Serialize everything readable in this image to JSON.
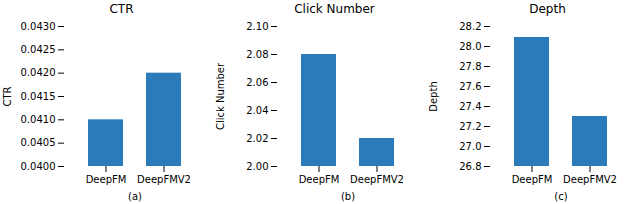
{
  "chart_data": [
    {
      "type": "bar",
      "title": "CTR",
      "xlabel": "(a)",
      "ylabel": "CTR",
      "categories": [
        "DeepFM",
        "DeepFMV2"
      ],
      "values": [
        0.041,
        0.042
      ],
      "color": "#2b7bba",
      "ylim": [
        0.04,
        0.043
      ],
      "yticks": [
        {
          "value": 0.04,
          "label": "0.0400"
        },
        0.0405,
        {
          "value": 0.041,
          "label": "0.0410"
        },
        0.0415,
        {
          "value": 0.042,
          "label": "0.0420"
        },
        0.0425,
        {
          "value": 0.043,
          "label": "0.0430"
        }
      ]
    },
    {
      "type": "bar",
      "title": "Click Number",
      "xlabel": "(b)",
      "ylabel": "Click Number",
      "categories": [
        "DeepFM",
        "DeepFMV2"
      ],
      "values": [
        2.08,
        2.02
      ],
      "color": "#2b7bba",
      "ylim": [
        2.0,
        2.1
      ],
      "yticks": [
        {
          "value": 2.0,
          "label": "2.00"
        },
        2.02,
        2.04,
        2.06,
        2.08,
        {
          "value": 2.1,
          "label": "2.10"
        }
      ]
    },
    {
      "type": "bar",
      "title": "Depth",
      "xlabel": "(c)",
      "ylabel": "Depth",
      "categories": [
        "DeepFM",
        "DeepFMV2"
      ],
      "values": [
        28.09,
        27.3
      ],
      "color": "#2b7bba",
      "ylim": [
        26.8,
        28.2
      ],
      "yticks": [
        26.8,
        {
          "value": 27.0,
          "label": "27.0"
        },
        27.2,
        27.4,
        27.6,
        27.8,
        {
          "value": 28.0,
          "label": "28.0"
        },
        28.2
      ]
    }
  ]
}
